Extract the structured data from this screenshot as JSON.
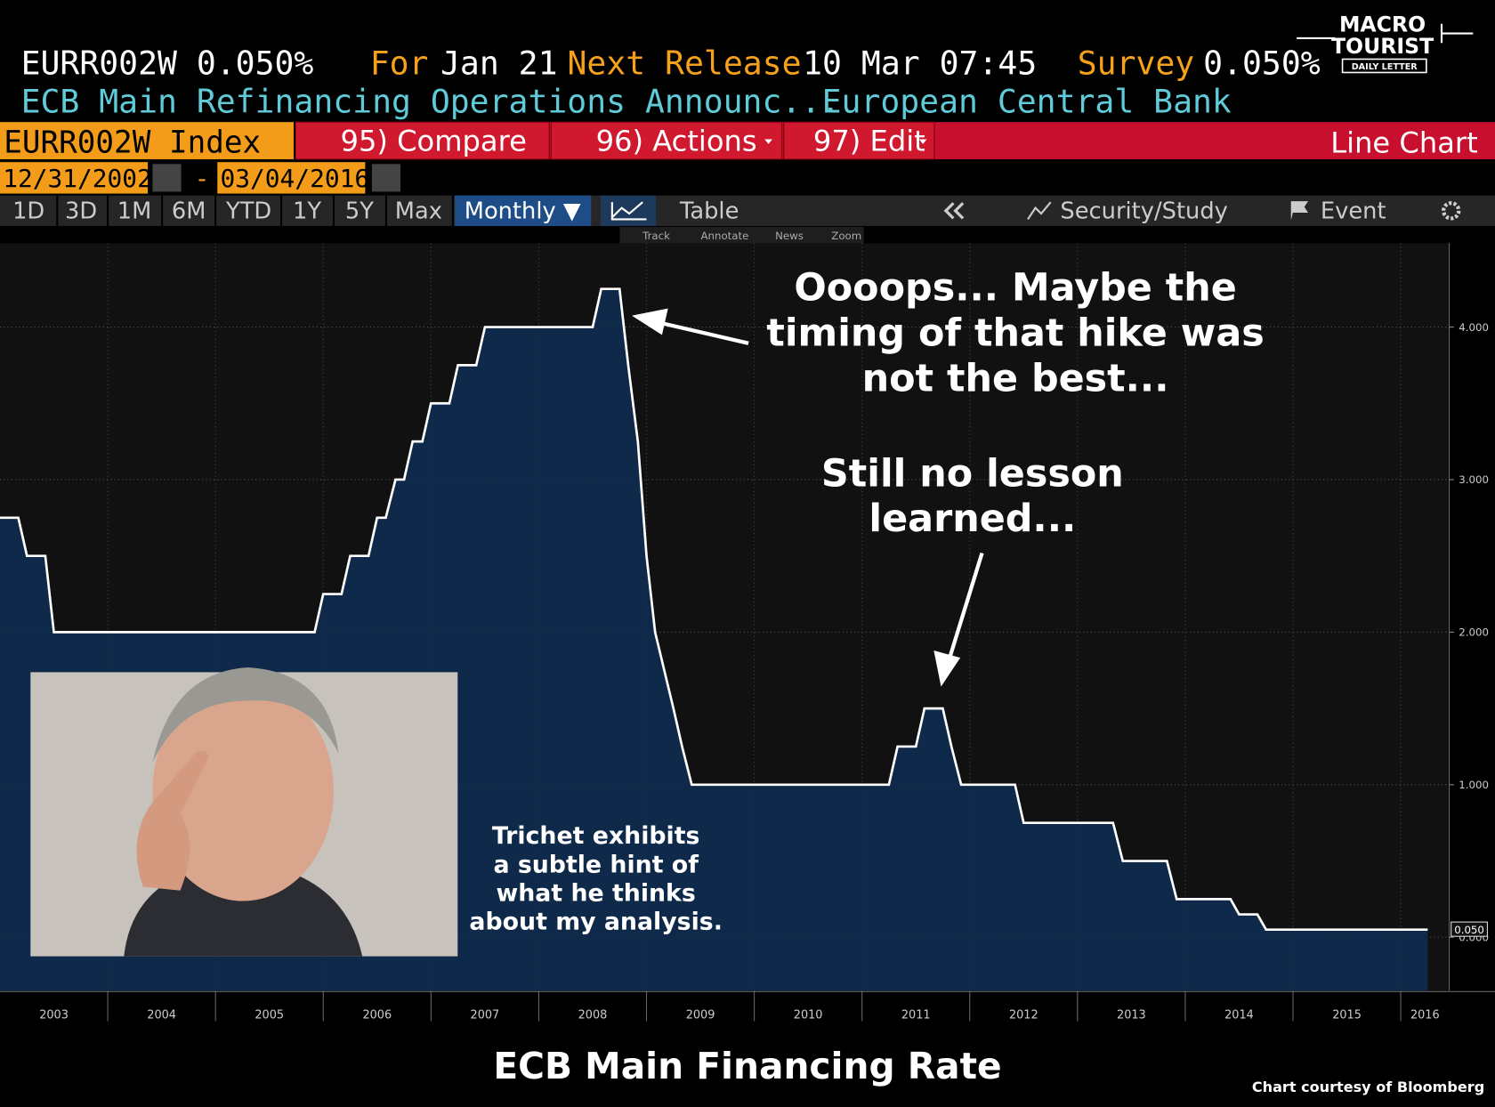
{
  "header": {
    "ticker": "EURR002W 0.050%",
    "for_label": "For",
    "for_value": "Jan 21",
    "next_release_label": "Next Release",
    "next_release_value": "10 Mar 07:45",
    "survey_label": "Survey",
    "survey_value": "0.050%",
    "description": "ECB Main Refinancing Operations Announc...",
    "source": "European Central Bank"
  },
  "logo": {
    "line1": "MACRO",
    "line2": "TOURIST",
    "line3": "DAILY LETTER"
  },
  "toolbar": {
    "security": "EURR002W Index",
    "menu": [
      "95) Compare",
      "96) Actions",
      "97) Edit"
    ],
    "view": "Line Chart",
    "start_date": "12/31/2002",
    "separator": "-",
    "end_date": "03/04/2016",
    "periods": [
      "1D",
      "3D",
      "1M",
      "6M",
      "YTD",
      "1Y",
      "5Y",
      "Max"
    ],
    "frequency": "Monthly ▼",
    "table": "Table",
    "right_buttons": [
      "Security/Study",
      "Event"
    ],
    "tools": [
      "Track",
      "Annotate",
      "News",
      "Zoom"
    ]
  },
  "chart_data": {
    "type": "line",
    "title": "ECB Main Financing Rate",
    "credit": "Chart courtesy of Bloomberg",
    "color": "#ffffff",
    "fill": "#0f2b4d",
    "grid": true,
    "x": [
      2003.0,
      2003.17,
      2003.25,
      2003.42,
      2003.5,
      2005.92,
      2006.0,
      2006.17,
      2006.25,
      2006.42,
      2006.5,
      2006.58,
      2006.67,
      2006.75,
      2006.83,
      2006.92,
      2007.0,
      2007.17,
      2007.25,
      2007.42,
      2007.5,
      2008.5,
      2008.58,
      2008.75,
      2008.83,
      2008.92,
      2009.0,
      2009.08,
      2009.25,
      2009.33,
      2009.42,
      2011.25,
      2011.33,
      2011.5,
      2011.58,
      2011.75,
      2011.83,
      2011.92,
      2012.42,
      2012.5,
      2013.33,
      2013.42,
      2013.83,
      2013.92,
      2014.42,
      2014.5,
      2014.67,
      2014.75,
      2016.25
    ],
    "values": [
      2.75,
      2.75,
      2.5,
      2.5,
      2.0,
      2.0,
      2.25,
      2.25,
      2.5,
      2.5,
      2.75,
      2.75,
      3.0,
      3.0,
      3.25,
      3.25,
      3.5,
      3.5,
      3.75,
      3.75,
      4.0,
      4.0,
      4.25,
      4.25,
      3.75,
      3.25,
      2.5,
      2.0,
      1.5,
      1.25,
      1.0,
      1.0,
      1.25,
      1.25,
      1.5,
      1.5,
      1.25,
      1.0,
      1.0,
      0.75,
      0.75,
      0.5,
      0.5,
      0.25,
      0.25,
      0.15,
      0.15,
      0.05,
      0.05
    ],
    "last_value_label": "0.050",
    "xlim": [
      2003.0,
      2016.45
    ],
    "xticks": [
      2003,
      2004,
      2005,
      2006,
      2007,
      2008,
      2009,
      2010,
      2011,
      2012,
      2013,
      2014,
      2015,
      2016
    ],
    "ylim": [
      -0.35,
      4.55
    ],
    "yticks": [
      {
        "value": 0,
        "label": "0.000"
      },
      {
        "value": 1,
        "label": "1.000"
      },
      {
        "value": 2,
        "label": "2.000"
      },
      {
        "value": 3,
        "label": "3.000"
      },
      {
        "value": 4,
        "label": "4.000"
      }
    ],
    "annotations": [
      {
        "lines": [
          "Oooops...  Maybe the",
          "timing of that hike was",
          "not the best..."
        ]
      },
      {
        "lines": [
          "Still no lesson",
          "learned..."
        ]
      },
      {
        "lines": [
          "Trichet exhibits",
          "a subtle hint of",
          "what he thinks",
          "about my analysis."
        ]
      }
    ]
  }
}
